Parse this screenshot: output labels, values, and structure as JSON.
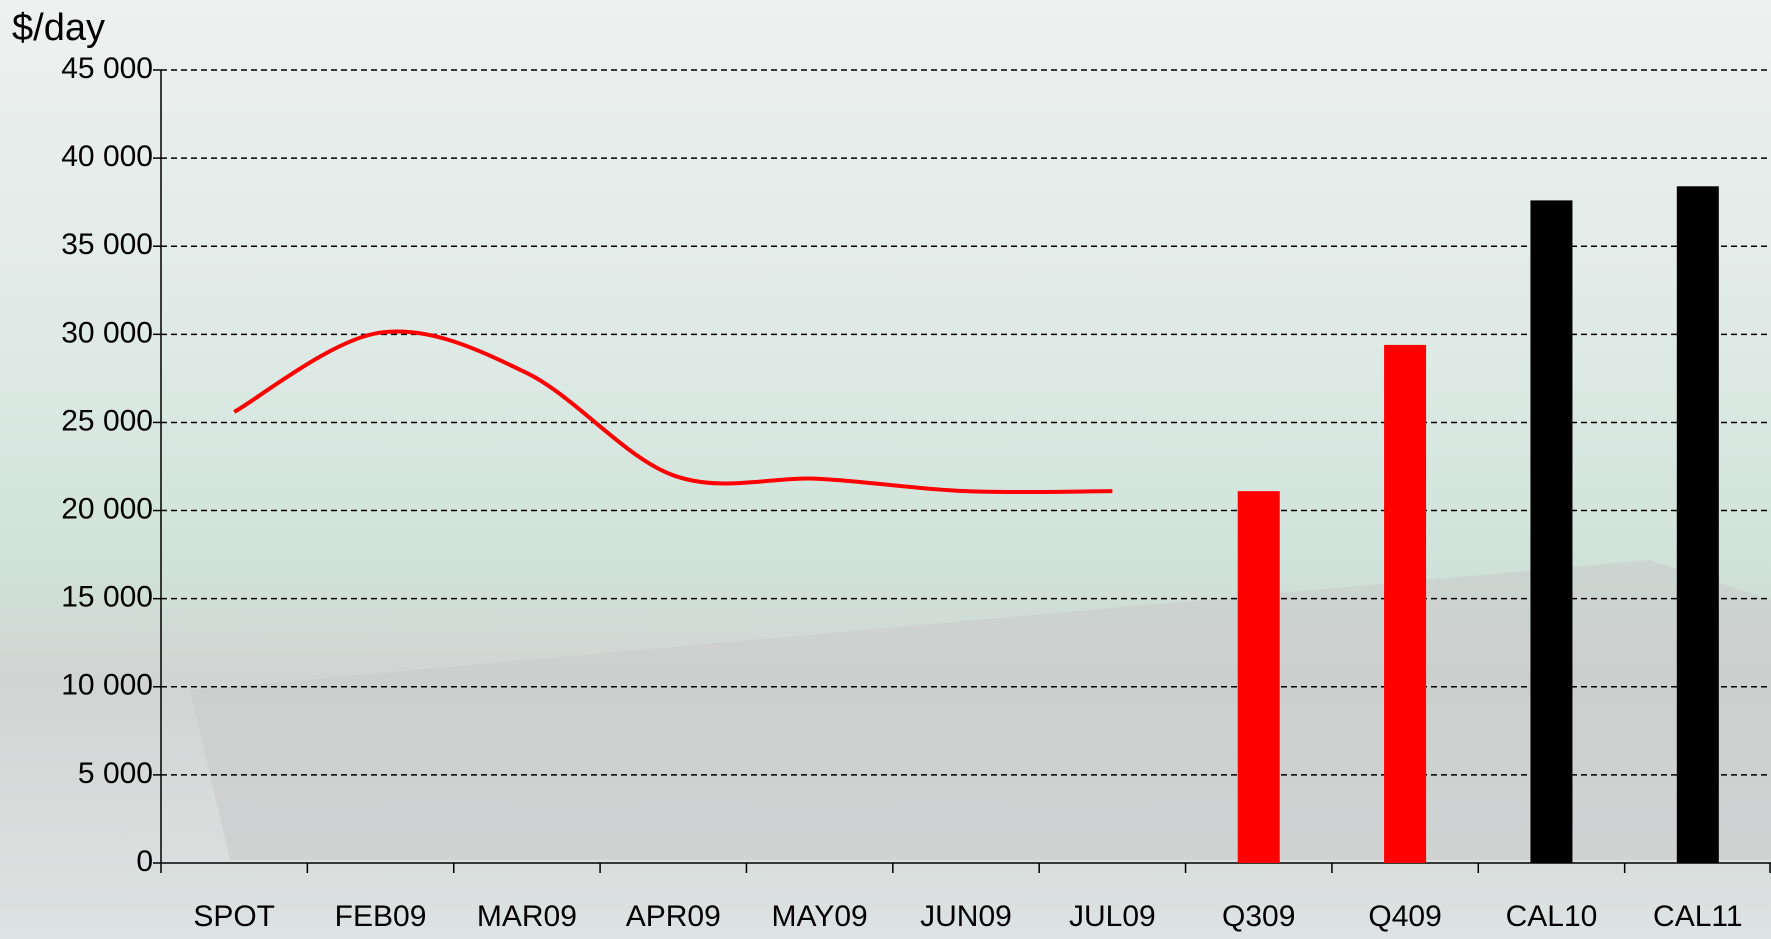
{
  "chart_data": {
    "type": "bar_line",
    "y_axis_label": "$/day",
    "categories": [
      "SPOT",
      "FEB09",
      "MAR09",
      "APR09",
      "MAY09",
      "JUN09",
      "JUL09",
      "Q309",
      "Q409",
      "CAL10",
      "CAL11"
    ],
    "series": [
      {
        "type": "line",
        "color": "#ff0000",
        "values": [
          25600,
          30100,
          27800,
          22000,
          21800,
          21100,
          21100,
          null,
          null,
          null,
          null
        ]
      },
      {
        "type": "bar",
        "colors": [
          null,
          null,
          null,
          null,
          null,
          null,
          null,
          "#ff0000",
          "#ff0000",
          "#000000",
          "#000000"
        ],
        "values": [
          null,
          null,
          null,
          null,
          null,
          null,
          null,
          21100,
          29400,
          37600,
          38400
        ]
      }
    ],
    "ylim": [
      0,
      45000
    ],
    "yticks": [
      0,
      {
        "value": 5000,
        "label": "5 000"
      },
      {
        "value": 10000,
        "label": "10 000"
      },
      {
        "value": 15000,
        "label": "15 000"
      },
      {
        "value": 20000,
        "label": "20 000"
      },
      {
        "value": 25000,
        "label": "25 000"
      },
      {
        "value": 30000,
        "label": "30 000"
      },
      {
        "value": 35000,
        "label": "35 000"
      },
      {
        "value": 40000,
        "label": "40 000"
      },
      {
        "value": 45000,
        "label": "45 000"
      }
    ],
    "grid": true
  }
}
